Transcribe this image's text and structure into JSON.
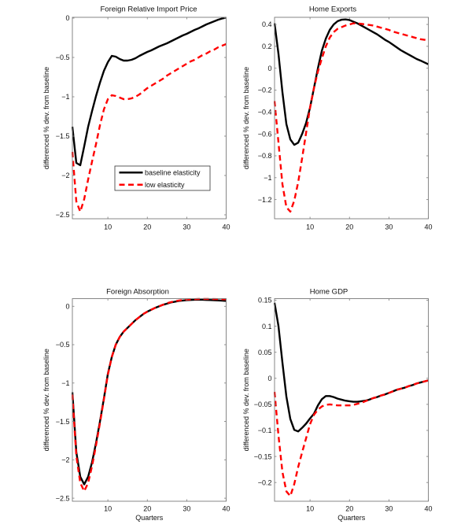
{
  "chart_data": [
    {
      "type": "line",
      "title": "Foreign Relative Import Price",
      "xlabel": "",
      "ylabel": "differenced % dev. from baseline",
      "grid": false,
      "xlim": [
        1,
        40
      ],
      "ylim": [
        -2.55,
        0.01
      ],
      "xticks": [
        10,
        20,
        30,
        40
      ],
      "xticklabels": [
        "10",
        "20",
        "30",
        "40"
      ],
      "yticks": [
        0,
        -0.5,
        -1,
        -1.5,
        -2,
        -2.5
      ],
      "yticklabels": [
        "0",
        "−0.5",
        "−1",
        "−1.5",
        "−2",
        "−2.5"
      ],
      "legend": {
        "location": "lower-right",
        "entries": [
          "baseline elasticity",
          "low elasticity"
        ]
      },
      "x": [
        1,
        2,
        3,
        4,
        5,
        6,
        7,
        8,
        9,
        10,
        11,
        12,
        13,
        14,
        15,
        16,
        17,
        18,
        19,
        20,
        21,
        22,
        23,
        24,
        25,
        26,
        27,
        28,
        29,
        30,
        31,
        32,
        33,
        34,
        35,
        36,
        37,
        38,
        39,
        40
      ],
      "series": [
        {
          "name": "baseline elasticity",
          "color": "#000000",
          "style": "solid",
          "values": [
            -1.38,
            -1.84,
            -1.87,
            -1.63,
            -1.38,
            -1.18,
            -0.99,
            -0.82,
            -0.67,
            -0.56,
            -0.48,
            -0.49,
            -0.52,
            -0.54,
            -0.54,
            -0.53,
            -0.51,
            -0.48,
            -0.455,
            -0.43,
            -0.41,
            -0.385,
            -0.36,
            -0.34,
            -0.32,
            -0.295,
            -0.27,
            -0.245,
            -0.22,
            -0.2,
            -0.175,
            -0.15,
            -0.13,
            -0.105,
            -0.08,
            -0.06,
            -0.04,
            -0.02,
            -0.005,
            0.005
          ]
        },
        {
          "name": "low elasticity",
          "color": "#ff0000",
          "style": "dashed",
          "values": [
            -1.7,
            -2.33,
            -2.46,
            -2.3,
            -2.05,
            -1.82,
            -1.6,
            -1.36,
            -1.16,
            -1.03,
            -0.98,
            -0.99,
            -1.01,
            -1.03,
            -1.03,
            -1.02,
            -1.0,
            -0.97,
            -0.93,
            -0.89,
            -0.86,
            -0.83,
            -0.8,
            -0.77,
            -0.73,
            -0.7,
            -0.67,
            -0.64,
            -0.61,
            -0.58,
            -0.55,
            -0.53,
            -0.5,
            -0.47,
            -0.45,
            -0.42,
            -0.4,
            -0.37,
            -0.35,
            -0.33
          ]
        }
      ]
    },
    {
      "type": "line",
      "title": "Home Exports",
      "xlabel": "",
      "ylabel": "differenced % dev. from baseline",
      "grid": false,
      "xlim": [
        1,
        40
      ],
      "ylim": [
        -1.375,
        0.465
      ],
      "xticks": [
        10,
        20,
        30,
        40
      ],
      "xticklabels": [
        "10",
        "20",
        "30",
        "40"
      ],
      "yticks": [
        0.4,
        0.2,
        0,
        -0.2,
        -0.4,
        -0.6,
        -0.8,
        -1,
        -1.2
      ],
      "yticklabels": [
        "0.4",
        "0.2",
        "0",
        "−0.2",
        "−0.4",
        "−0.6",
        "−0.8",
        "−1",
        "−1.2"
      ],
      "x": [
        1,
        2,
        3,
        4,
        5,
        6,
        7,
        8,
        9,
        10,
        11,
        12,
        13,
        14,
        15,
        16,
        17,
        18,
        19,
        20,
        21,
        22,
        23,
        24,
        25,
        26,
        27,
        28,
        29,
        30,
        31,
        32,
        33,
        34,
        35,
        36,
        37,
        38,
        39,
        40
      ],
      "series": [
        {
          "name": "baseline elasticity",
          "color": "#000000",
          "style": "solid",
          "values": [
            0.41,
            0.13,
            -0.22,
            -0.51,
            -0.65,
            -0.7,
            -0.68,
            -0.6,
            -0.5,
            -0.36,
            -0.18,
            0.0,
            0.16,
            0.27,
            0.35,
            0.4,
            0.43,
            0.443,
            0.446,
            0.44,
            0.425,
            0.41,
            0.39,
            0.37,
            0.35,
            0.33,
            0.31,
            0.285,
            0.26,
            0.24,
            0.215,
            0.19,
            0.165,
            0.145,
            0.125,
            0.105,
            0.085,
            0.07,
            0.053,
            0.036
          ]
        },
        {
          "name": "low elasticity",
          "color": "#ff0000",
          "style": "dashed",
          "values": [
            -0.3,
            -0.68,
            -1.06,
            -1.27,
            -1.31,
            -1.21,
            -1.04,
            -0.82,
            -0.59,
            -0.36,
            -0.18,
            -0.03,
            0.09,
            0.2,
            0.28,
            0.33,
            0.36,
            0.375,
            0.39,
            0.4,
            0.41,
            0.41,
            0.405,
            0.4,
            0.395,
            0.39,
            0.38,
            0.37,
            0.36,
            0.35,
            0.335,
            0.325,
            0.315,
            0.305,
            0.295,
            0.285,
            0.275,
            0.265,
            0.26,
            0.254
          ]
        }
      ]
    },
    {
      "type": "line",
      "title": "Foreign Absorption",
      "xlabel": "Quarters",
      "ylabel": "differenced % dev. from baseline",
      "grid": false,
      "xlim": [
        1,
        40
      ],
      "ylim": [
        -2.54,
        0.1
      ],
      "xticks": [
        10,
        20,
        30,
        40
      ],
      "xticklabels": [
        "10",
        "20",
        "30",
        "40"
      ],
      "yticks": [
        0,
        -0.5,
        -1,
        -1.5,
        -2,
        -2.5
      ],
      "yticklabels": [
        "0",
        "−0.5",
        "−1",
        "−1.5",
        "−2",
        "−2.5"
      ],
      "x": [
        1,
        2,
        3,
        4,
        5,
        6,
        7,
        8,
        9,
        10,
        11,
        12,
        13,
        14,
        15,
        16,
        17,
        18,
        19,
        20,
        21,
        22,
        23,
        24,
        25,
        26,
        27,
        28,
        29,
        30,
        31,
        32,
        33,
        34,
        35,
        36,
        37,
        38,
        39,
        40
      ],
      "series": [
        {
          "name": "baseline elasticity",
          "color": "#000000",
          "style": "solid",
          "values": [
            -1.12,
            -1.9,
            -2.22,
            -2.32,
            -2.22,
            -2.03,
            -1.78,
            -1.5,
            -1.2,
            -0.88,
            -0.66,
            -0.5,
            -0.4,
            -0.33,
            -0.28,
            -0.23,
            -0.18,
            -0.14,
            -0.1,
            -0.07,
            -0.045,
            -0.02,
            0.0,
            0.02,
            0.035,
            0.05,
            0.06,
            0.07,
            0.075,
            0.08,
            0.083,
            0.085,
            0.085,
            0.085,
            0.083,
            0.081,
            0.079,
            0.077,
            0.074,
            0.07
          ]
        },
        {
          "name": "low elasticity",
          "color": "#ff0000",
          "style": "dashed",
          "values": [
            -1.15,
            -1.95,
            -2.3,
            -2.41,
            -2.3,
            -2.08,
            -1.81,
            -1.52,
            -1.21,
            -0.89,
            -0.66,
            -0.5,
            -0.4,
            -0.33,
            -0.28,
            -0.23,
            -0.18,
            -0.14,
            -0.1,
            -0.07,
            -0.045,
            -0.02,
            0.0,
            0.02,
            0.04,
            0.055,
            0.065,
            0.075,
            0.082,
            0.087,
            0.09,
            0.093,
            0.095,
            0.096,
            0.096,
            0.095,
            0.094,
            0.093,
            0.092,
            0.09
          ]
        }
      ]
    },
    {
      "type": "line",
      "title": "Home GDP",
      "xlabel": "Quarters",
      "ylabel": "differenced % dev. from baseline",
      "grid": false,
      "xlim": [
        1,
        40
      ],
      "ylim": [
        -0.236,
        0.153
      ],
      "xticks": [
        10,
        20,
        30,
        40
      ],
      "xticklabels": [
        "10",
        "20",
        "30",
        "40"
      ],
      "yticks": [
        0.15,
        0.1,
        0.05,
        0,
        -0.05,
        -0.1,
        -0.15,
        -0.2
      ],
      "yticklabels": [
        "0.15",
        "0.1",
        "0.05",
        "0",
        "−0.05",
        "−0.1",
        "−0.15",
        "−0.2"
      ],
      "x": [
        1,
        2,
        3,
        4,
        5,
        6,
        7,
        8,
        9,
        10,
        11,
        12,
        13,
        14,
        15,
        16,
        17,
        18,
        19,
        20,
        21,
        22,
        23,
        24,
        25,
        26,
        27,
        28,
        29,
        30,
        31,
        32,
        33,
        34,
        35,
        36,
        37,
        38,
        39,
        40
      ],
      "series": [
        {
          "name": "baseline elasticity",
          "color": "#000000",
          "style": "solid",
          "values": [
            0.145,
            0.1,
            0.03,
            -0.035,
            -0.078,
            -0.099,
            -0.102,
            -0.095,
            -0.087,
            -0.077,
            -0.068,
            -0.052,
            -0.04,
            -0.034,
            -0.034,
            -0.036,
            -0.039,
            -0.041,
            -0.043,
            -0.044,
            -0.045,
            -0.045,
            -0.044,
            -0.043,
            -0.041,
            -0.038,
            -0.036,
            -0.033,
            -0.031,
            -0.028,
            -0.025,
            -0.022,
            -0.02,
            -0.018,
            -0.015,
            -0.013,
            -0.01,
            -0.008,
            -0.006,
            -0.004
          ]
        },
        {
          "name": "low elasticity",
          "color": "#ff0000",
          "style": "dashed",
          "values": [
            -0.026,
            -0.11,
            -0.18,
            -0.217,
            -0.226,
            -0.203,
            -0.17,
            -0.142,
            -0.115,
            -0.088,
            -0.07,
            -0.06,
            -0.054,
            -0.051,
            -0.05,
            -0.051,
            -0.052,
            -0.052,
            -0.052,
            -0.052,
            -0.051,
            -0.049,
            -0.047,
            -0.044,
            -0.041,
            -0.038,
            -0.036,
            -0.033,
            -0.031,
            -0.028,
            -0.025,
            -0.022,
            -0.02,
            -0.018,
            -0.015,
            -0.013,
            -0.01,
            -0.008,
            -0.006,
            -0.004
          ]
        }
      ]
    }
  ]
}
